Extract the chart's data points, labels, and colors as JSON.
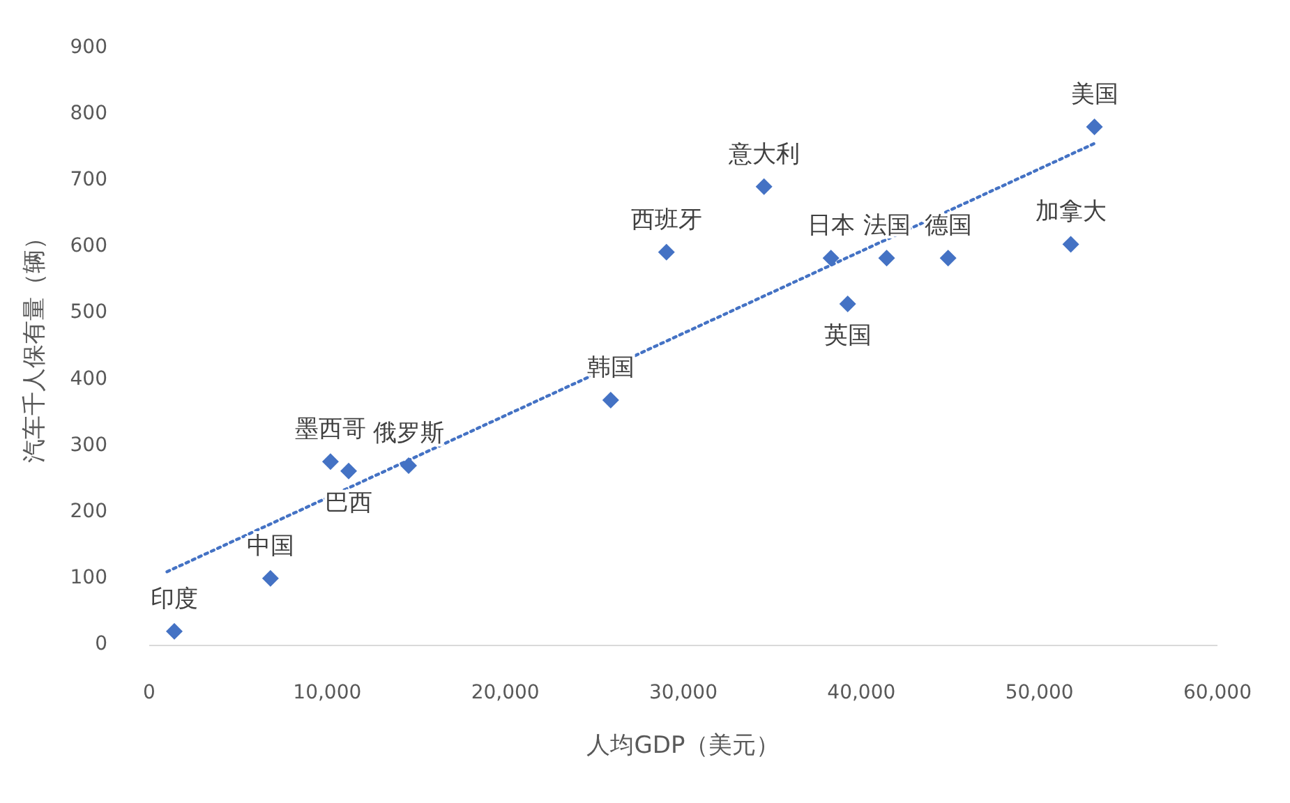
{
  "chart_data": {
    "type": "scatter",
    "xlabel": "人均GDP（美元）",
    "ylabel": "汽车千人保有量（辆）",
    "xlim": [
      0,
      60000
    ],
    "ylim": [
      0,
      900
    ],
    "xticks": [
      {
        "value": 0,
        "label": "0"
      },
      {
        "value": 10000,
        "label": "10,000"
      },
      {
        "value": 20000,
        "label": "20,000"
      },
      {
        "value": 30000,
        "label": "30,000"
      },
      {
        "value": 40000,
        "label": "40,000"
      },
      {
        "value": 50000,
        "label": "50,000"
      },
      {
        "value": 60000,
        "label": "60,000"
      }
    ],
    "yticks": [
      0,
      100,
      200,
      300,
      400,
      500,
      600,
      700,
      800,
      900
    ],
    "grid": false,
    "series": [
      {
        "type": "scatter",
        "marker": "diamond",
        "color": "#4472c4",
        "x": [
          1410,
          6810,
          10180,
          11200,
          14570,
          25920,
          29050,
          34530,
          38290,
          39230,
          41420,
          44870,
          51760,
          53090
        ],
        "values": [
          17,
          97,
          273,
          259,
          267,
          366,
          589,
          688,
          580,
          511,
          580,
          580,
          601,
          778
        ]
      },
      {
        "type": "line",
        "line_style": "dotted",
        "color": "#4472c4",
        "x": [
          1000,
          53090
        ],
        "values": [
          107,
          753
        ]
      }
    ],
    "annotations": [
      {
        "text": "印度",
        "x": 1410,
        "y": 17
      },
      {
        "text": "中国",
        "x": 6810,
        "y": 97
      },
      {
        "text": "墨西哥",
        "x": 10180,
        "y": 273
      },
      {
        "text": "巴西",
        "x": 11200,
        "y": 259
      },
      {
        "text": "俄罗斯",
        "x": 14570,
        "y": 267
      },
      {
        "text": "韩国",
        "x": 25920,
        "y": 366
      },
      {
        "text": "西班牙",
        "x": 29050,
        "y": 589
      },
      {
        "text": "意大利",
        "x": 34530,
        "y": 688
      },
      {
        "text": "日本",
        "x": 38290,
        "y": 580
      },
      {
        "text": "英国",
        "x": 39230,
        "y": 511
      },
      {
        "text": "法国",
        "x": 41420,
        "y": 580
      },
      {
        "text": "德国",
        "x": 44870,
        "y": 580
      },
      {
        "text": "加拿大",
        "x": 51760,
        "y": 601
      },
      {
        "text": "美国",
        "x": 53090,
        "y": 778
      }
    ]
  }
}
